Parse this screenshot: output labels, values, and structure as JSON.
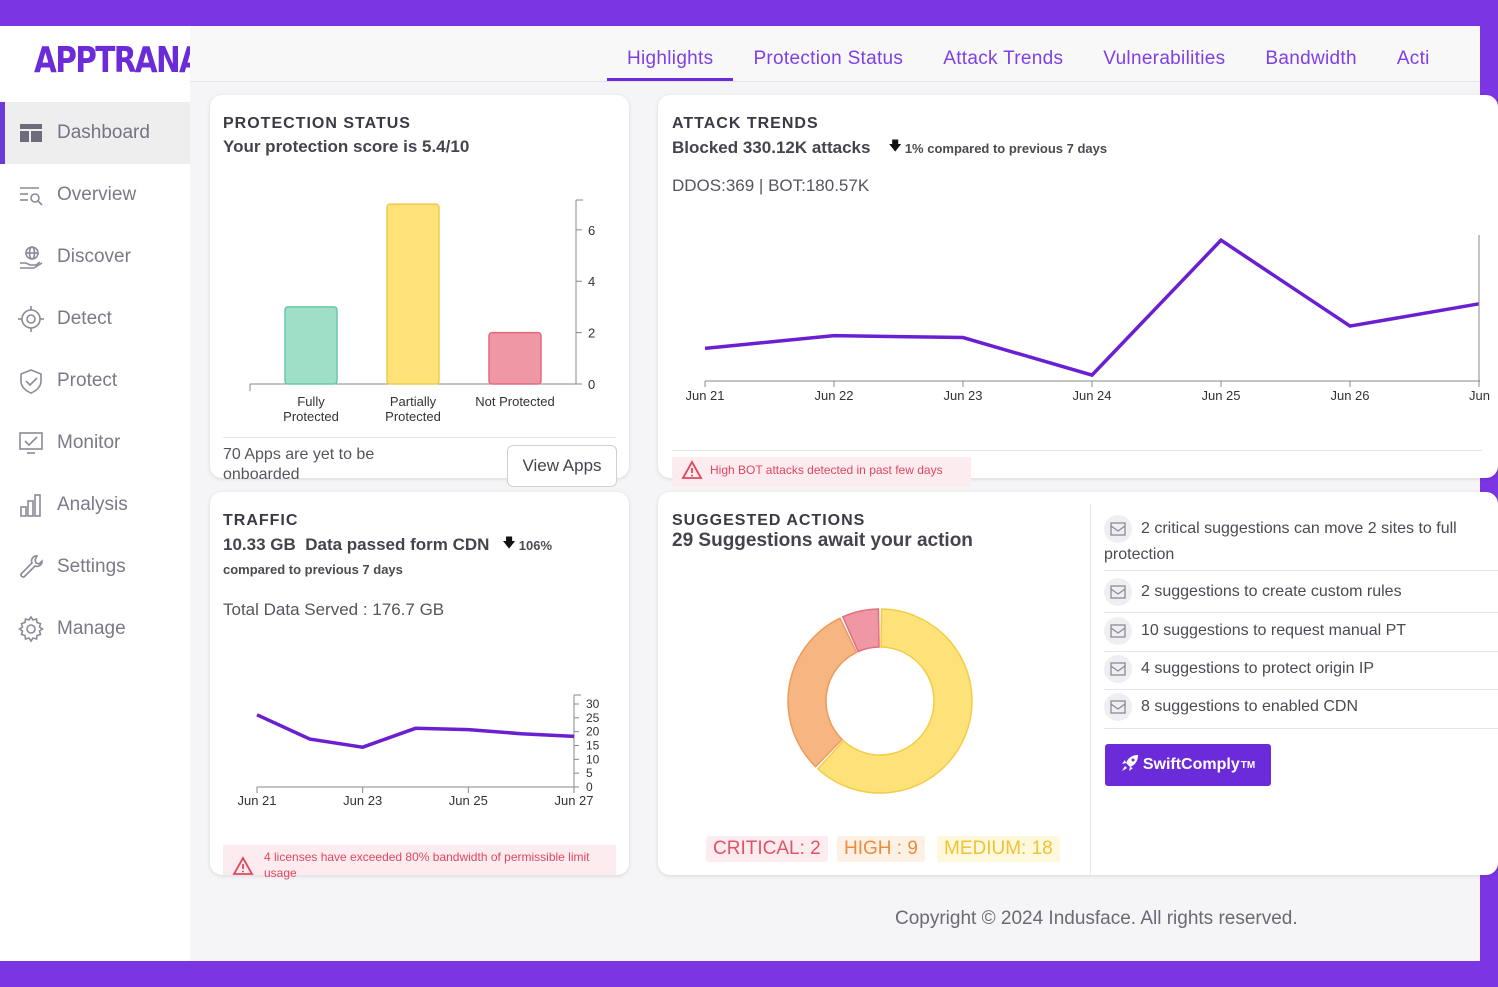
{
  "brand": {
    "logo_text": "APPTRANA",
    "accent": "#6c2bd9",
    "frame_color": "#7b35e3"
  },
  "sidebar": {
    "items": [
      {
        "label": "Dashboard",
        "icon": "dashboard-icon",
        "active": true
      },
      {
        "label": "Overview",
        "icon": "overview-icon"
      },
      {
        "label": "Discover",
        "icon": "discover-icon"
      },
      {
        "label": "Detect",
        "icon": "detect-icon"
      },
      {
        "label": "Protect",
        "icon": "protect-icon"
      },
      {
        "label": "Monitor",
        "icon": "monitor-icon"
      },
      {
        "label": "Analysis",
        "icon": "analysis-icon"
      },
      {
        "label": "Settings",
        "icon": "settings-icon"
      },
      {
        "label": "Manage",
        "icon": "manage-icon"
      }
    ]
  },
  "tabs": [
    {
      "label": "Highlights",
      "active": true
    },
    {
      "label": "Protection Status"
    },
    {
      "label": "Attack Trends"
    },
    {
      "label": "Vulnerabilities"
    },
    {
      "label": "Bandwidth"
    },
    {
      "label": "Acti"
    }
  ],
  "protection": {
    "title": "PROTECTION STATUS",
    "subtitle": "Your protection score is 5.4/10",
    "footer_text": "70 Apps are yet to be onboarded",
    "button": "View Apps"
  },
  "attack": {
    "title": "ATTACK TRENDS",
    "subtitle": "Blocked 330.12K attacks",
    "change": "1% compared to previous 7 days",
    "breakdown": "DDOS:369 | BOT:180.57K",
    "warning": "High BOT attacks detected in past few days"
  },
  "traffic": {
    "title": "TRAFFIC",
    "subtitle": "10.33 GB  Data passed form CDN",
    "change": "106%",
    "compare": "compared to previous 7 days",
    "total": "Total Data Served : 176.7 GB",
    "warning": "4 licenses have exceeded 80% bandwidth of permissible limit usage"
  },
  "suggested": {
    "title": "SUGGESTED ACTIONS",
    "subtitle": "29 Suggestions await your action",
    "items": [
      "2 critical suggestions can move 2 sites to full protection",
      "2 suggestions to create custom rules",
      "10 suggestions to request manual PT",
      "4 suggestions to protect origin IP",
      "8 suggestions to enabled CDN"
    ],
    "cta": "SwiftComply",
    "cta_sup": "TM",
    "legend": [
      "CRITICAL: 2",
      "HIGH : 9",
      "MEDIUM: 18"
    ]
  },
  "footer": "Copyright © 2024 Indusface. All rights reserved.",
  "chart_data": [
    {
      "type": "bar",
      "categories": [
        "Fully Protected",
        "Partially Protected",
        "Not Protected"
      ],
      "values": [
        3,
        7,
        2
      ],
      "colors": [
        "#9fdfc7",
        "#fde27a",
        "#ef97a4"
      ],
      "yticks": [
        0,
        2,
        4,
        6
      ],
      "ylim": [
        0,
        7
      ]
    },
    {
      "type": "line",
      "x": [
        "Jun 21",
        "Jun 22",
        "Jun 23",
        "Jun 24",
        "Jun 25",
        "Jun 26",
        "Jun"
      ],
      "values": [
        45,
        65,
        62,
        3,
        215,
        80,
        115
      ],
      "color": "#6a1fd1"
    },
    {
      "type": "line",
      "x": [
        "Jun 21",
        "Jun 22",
        "Jun 23",
        "Jun 24",
        "Jun 25",
        "Jun 26",
        "Jun 27"
      ],
      "xtick_labels": [
        "Jun 21",
        "Jun 23",
        "Jun 25",
        "Jun 27"
      ],
      "values": [
        26,
        17,
        14,
        21,
        20.5,
        19,
        18
      ],
      "yticks": [
        0,
        5,
        10,
        15,
        20,
        25,
        30
      ],
      "ylim": [
        0,
        32
      ],
      "color": "#6a1fd1"
    },
    {
      "type": "pie",
      "categories": [
        "CRITICAL",
        "HIGH",
        "MEDIUM"
      ],
      "values": [
        2,
        9,
        18
      ],
      "colors": [
        "#ef97a4",
        "#f6b581",
        "#fde27a"
      ],
      "strokes": [
        "#e0707f",
        "#ef9a5c",
        "#f5cc45"
      ]
    }
  ]
}
